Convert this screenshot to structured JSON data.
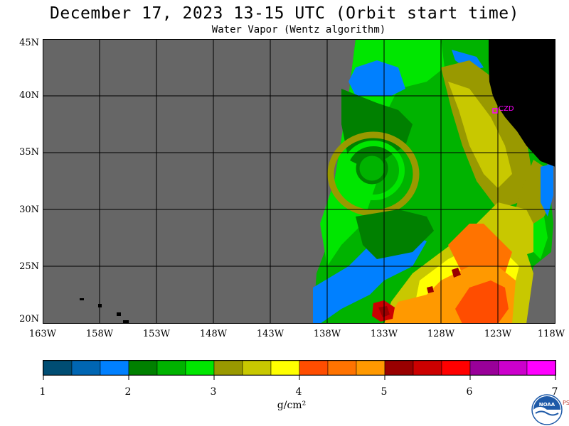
{
  "title": "December 17, 2023  13-15 UTC  (Orbit start time)",
  "subtitle": "Water Vapor (Wentz algorithm)",
  "map": {
    "lat_labels": [
      "45N",
      "40N",
      "35N",
      "30N",
      "25N",
      "20N"
    ],
    "lon_labels": [
      "163W",
      "158W",
      "153W",
      "148W",
      "143W",
      "138W",
      "133W",
      "128W",
      "123W",
      "118W"
    ],
    "station_label": "CZD",
    "colors": {
      "nodata": "#666666",
      "land": "#000000",
      "grid": "#000000",
      "station": "#ff00ff"
    }
  },
  "colorbar": {
    "ticks": [
      "1",
      "2",
      "3",
      "4",
      "5",
      "6",
      "7"
    ],
    "units": "g/cm²",
    "colors": [
      "#004d73",
      "#0066b3",
      "#0080ff",
      "#008000",
      "#00b300",
      "#00e600",
      "#999900",
      "#c8c800",
      "#ffff00",
      "#ff4d00",
      "#ff7300",
      "#ff9900",
      "#990000",
      "#cc0000",
      "#ff0000",
      "#990099",
      "#cc00cc",
      "#ff00ff"
    ]
  },
  "logo": {
    "text": "NOAA",
    "side_letters": "PSL"
  }
}
